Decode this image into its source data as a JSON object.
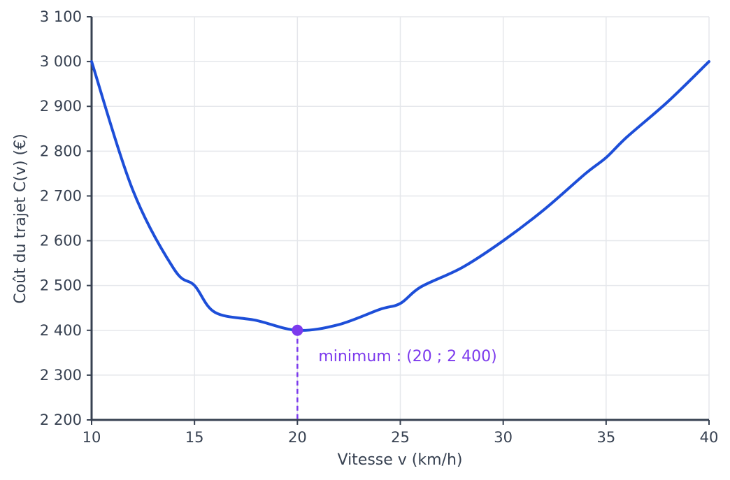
{
  "chart_data": {
    "type": "line",
    "title": "",
    "xlabel": "Vitesse v (km/h)",
    "ylabel": "Coût du trajet C(v) (€)",
    "xlim": [
      10,
      40
    ],
    "ylim": [
      2200,
      3100
    ],
    "x_ticks": [
      10,
      15,
      20,
      25,
      30,
      35,
      40
    ],
    "x_tick_labels": [
      "10",
      "15",
      "20",
      "25",
      "30",
      "35",
      "40"
    ],
    "y_ticks": [
      2200,
      2300,
      2400,
      2500,
      2600,
      2700,
      2800,
      2900,
      3000,
      3100
    ],
    "y_tick_labels": [
      "2 200",
      "2 300",
      "2 400",
      "2 500",
      "2 600",
      "2 700",
      "2 800",
      "2 900",
      "3 000",
      "3 100"
    ],
    "grid": true,
    "series": [
      {
        "x": [
          10,
          12,
          14,
          15,
          16,
          18,
          20,
          22,
          24,
          25,
          26,
          28,
          30,
          32,
          34,
          35,
          36,
          38,
          40
        ],
        "values": [
          3000,
          2713.3,
          2537.1,
          2500,
          2440,
          2422.2,
          2400,
          2412.7,
          2446.7,
          2460,
          2496.9,
          2540,
          2600,
          2670,
          2750,
          2785.7,
          2831.1,
          2910.5,
          3000
        ],
        "color": "#1d4ed8"
      }
    ],
    "annotations": [
      {
        "x": 20,
        "y": 2400,
        "label": "minimum : (20 ; 2 400)",
        "color": "#7c3aed"
      }
    ]
  }
}
